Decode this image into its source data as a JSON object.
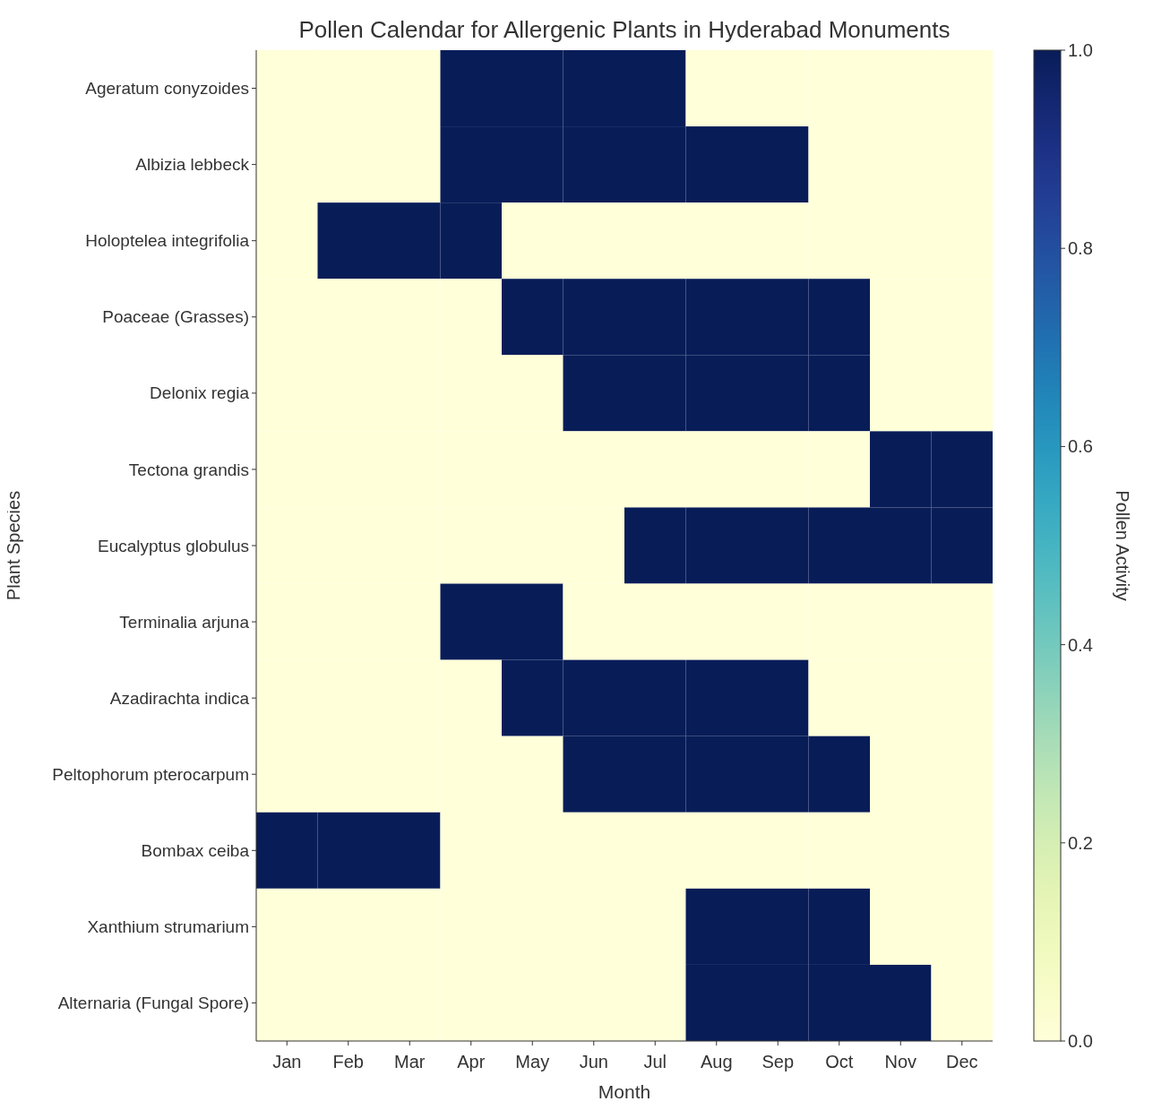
{
  "chart_data": {
    "type": "heatmap",
    "title": "Pollen Calendar for Allergenic Plants in Hyderabad Monuments",
    "xlabel": "Month",
    "ylabel": "Plant Species",
    "clabel": "Pollen Activity",
    "categories": [
      "Jan",
      "Feb",
      "Mar",
      "Apr",
      "May",
      "Jun",
      "Jul",
      "Aug",
      "Sep",
      "Oct",
      "Nov",
      "Dec"
    ],
    "y_categories": [
      "Ageratum conyzoides",
      "Albizia lebbeck",
      "Holoptelea integrifolia",
      "Poaceae (Grasses)",
      "Delonix regia",
      "Tectona grandis",
      "Eucalyptus globulus",
      "Terminalia arjuna",
      "Azadirachta indica",
      "Peltophorum pterocarpum",
      "Bombax ceiba",
      "Xanthium strumarium",
      "Alternaria (Fungal Spore)"
    ],
    "cells": [
      [
        0,
        0,
        0,
        1,
        1,
        1,
        1,
        0,
        0,
        0,
        0,
        0
      ],
      [
        0,
        0,
        0,
        1,
        1,
        1,
        1,
        1,
        1,
        0,
        0,
        0
      ],
      [
        0,
        1,
        1,
        1,
        0,
        0,
        0,
        0,
        0,
        0,
        0,
        0
      ],
      [
        0,
        0,
        0,
        0,
        1,
        1,
        1,
        1,
        1,
        1,
        0,
        0
      ],
      [
        0,
        0,
        0,
        0,
        0,
        1,
        1,
        1,
        1,
        1,
        0,
        0
      ],
      [
        0,
        0,
        0,
        0,
        0,
        0,
        0,
        0,
        0,
        0,
        1,
        1
      ],
      [
        0,
        0,
        0,
        0,
        0,
        0,
        1,
        1,
        1,
        1,
        1,
        1
      ],
      [
        0,
        0,
        0,
        1,
        1,
        0,
        0,
        0,
        0,
        0,
        0,
        0
      ],
      [
        0,
        0,
        0,
        0,
        1,
        1,
        1,
        1,
        1,
        0,
        0,
        0
      ],
      [
        0,
        0,
        0,
        0,
        0,
        1,
        1,
        1,
        1,
        1,
        0,
        0
      ],
      [
        1,
        1,
        1,
        0,
        0,
        0,
        0,
        0,
        0,
        0,
        0,
        0
      ],
      [
        0,
        0,
        0,
        0,
        0,
        0,
        0,
        1,
        1,
        1,
        0,
        0
      ],
      [
        0,
        0,
        0,
        0,
        0,
        0,
        0,
        1,
        1,
        1,
        1,
        0
      ]
    ],
    "clim": [
      0,
      1
    ],
    "cticks": [
      {
        "value": 0,
        "label": "0.0"
      },
      0.2,
      0.4,
      0.6,
      0.8,
      {
        "value": 1,
        "label": "1.0"
      }
    ]
  }
}
